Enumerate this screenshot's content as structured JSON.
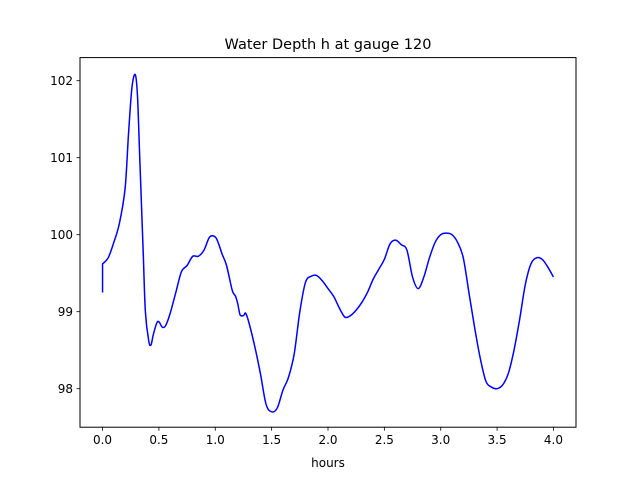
{
  "chart_data": {
    "type": "line",
    "title": "Water Depth h at gauge 120",
    "xlabel": "hours",
    "ylabel": "",
    "xlim": [
      -0.2,
      4.2
    ],
    "ylim": [
      97.5,
      102.3
    ],
    "grid": false,
    "x_ticks": [
      0.0,
      0.5,
      1.0,
      1.5,
      2.0,
      2.5,
      3.0,
      3.5,
      4.0
    ],
    "x_tick_labels": [
      "0.0",
      "0.5",
      "1.0",
      "1.5",
      "2.0",
      "2.5",
      "3.0",
      "3.5",
      "4.0"
    ],
    "y_ticks": [
      98,
      99,
      100,
      101,
      102
    ],
    "y_tick_labels": [
      "98",
      "99",
      "100",
      "101",
      "102"
    ],
    "series": [
      {
        "color": "#0000ff",
        "x": [
          0.0,
          0.0,
          0.05,
          0.1,
          0.15,
          0.2,
          0.23,
          0.26,
          0.29,
          0.31,
          0.33,
          0.36,
          0.38,
          0.41,
          0.43,
          0.45,
          0.48,
          0.5,
          0.53,
          0.56,
          0.6,
          0.65,
          0.7,
          0.75,
          0.8,
          0.85,
          0.9,
          0.95,
          1.0,
          1.03,
          1.06,
          1.1,
          1.15,
          1.18,
          1.2,
          1.22,
          1.25,
          1.27,
          1.3,
          1.35,
          1.4,
          1.45,
          1.5,
          1.55,
          1.6,
          1.65,
          1.7,
          1.75,
          1.8,
          1.85,
          1.9,
          1.95,
          2.0,
          2.05,
          2.1,
          2.15,
          2.2,
          2.25,
          2.3,
          2.35,
          2.4,
          2.45,
          2.5,
          2.55,
          2.6,
          2.65,
          2.7,
          2.75,
          2.8,
          2.85,
          2.9,
          2.95,
          3.0,
          3.05,
          3.1,
          3.15,
          3.2,
          3.25,
          3.3,
          3.35,
          3.4,
          3.45,
          3.5,
          3.55,
          3.6,
          3.65,
          3.7,
          3.75,
          3.8,
          3.85,
          3.9,
          3.95,
          4.0
        ],
        "values": [
          99.25,
          99.62,
          99.7,
          99.9,
          100.15,
          100.6,
          101.3,
          101.9,
          102.08,
          101.8,
          101.0,
          99.8,
          99.0,
          98.62,
          98.57,
          98.7,
          98.85,
          98.87,
          98.8,
          98.82,
          98.98,
          99.25,
          99.52,
          99.6,
          99.72,
          99.72,
          99.8,
          99.97,
          99.97,
          99.88,
          99.75,
          99.6,
          99.28,
          99.2,
          99.1,
          98.96,
          98.95,
          98.98,
          98.85,
          98.55,
          98.2,
          97.8,
          97.7,
          97.75,
          97.98,
          98.15,
          98.45,
          99.0,
          99.38,
          99.46,
          99.47,
          99.4,
          99.3,
          99.2,
          99.05,
          98.93,
          98.95,
          99.02,
          99.12,
          99.25,
          99.42,
          99.55,
          99.68,
          99.88,
          99.93,
          99.87,
          99.8,
          99.45,
          99.3,
          99.45,
          99.7,
          99.9,
          100.0,
          100.02,
          100.0,
          99.9,
          99.7,
          99.25,
          98.8,
          98.4,
          98.1,
          98.02,
          98.0,
          98.05,
          98.2,
          98.5,
          98.9,
          99.35,
          99.62,
          99.7,
          99.68,
          99.58,
          99.45
        ]
      }
    ]
  }
}
